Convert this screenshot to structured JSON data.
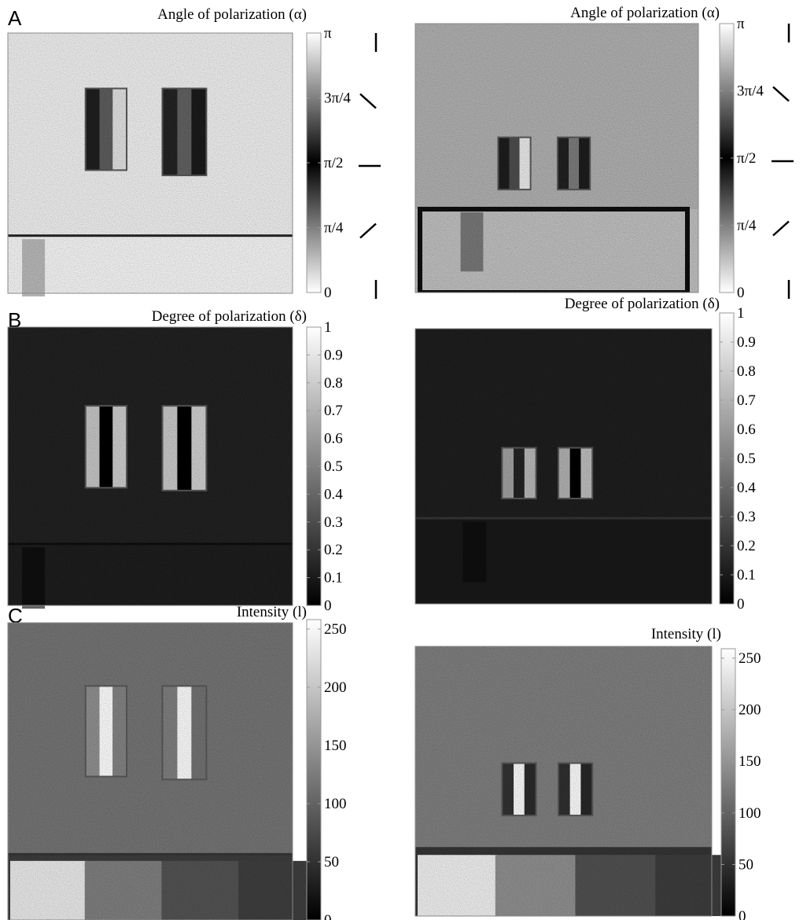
{
  "panels": [
    {
      "label": "A",
      "images": [
        {
          "title": "Angle of polarization (α)",
          "ticks": [
            "π",
            "3π/4",
            "π/2",
            "π/4",
            "0"
          ]
        },
        {
          "title": "Angle of polarization (α)",
          "ticks": [
            "π",
            "3π/4",
            "π/2",
            "π/4",
            "0"
          ]
        }
      ]
    },
    {
      "label": "B",
      "images": [
        {
          "title": "Degree of polarization (δ)",
          "ticks": [
            1,
            0.9,
            0.8,
            0.7,
            0.6,
            0.5,
            0.4,
            0.3,
            0.2,
            0.1,
            0
          ]
        },
        {
          "title": "Degree of polarization (δ)",
          "ticks": [
            1,
            0.9,
            0.8,
            0.7,
            0.6,
            0.5,
            0.4,
            0.3,
            0.2,
            0.1,
            0
          ]
        }
      ]
    },
    {
      "label": "C",
      "images": [
        {
          "title": "Intensity (l)",
          "ticks": [
            250,
            200,
            150,
            100,
            50,
            0
          ]
        },
        {
          "title": "Intensity (l)",
          "ticks": [
            250,
            200,
            150,
            100,
            50,
            0
          ]
        }
      ]
    }
  ]
}
